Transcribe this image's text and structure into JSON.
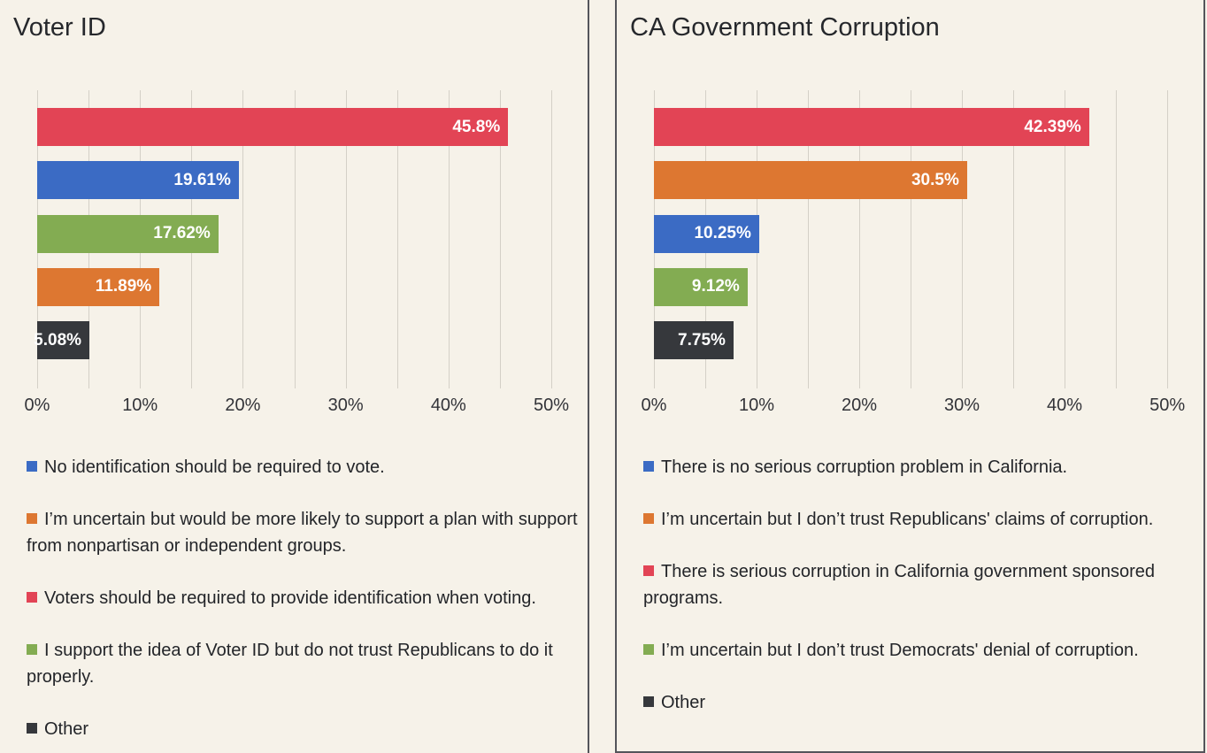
{
  "page_background": "#f6f2e9",
  "panel_border_color": "#54555b",
  "palette": {
    "blue": "#3b6bc4",
    "orange": "#dd7731",
    "red": "#e24455",
    "green": "#83ac52",
    "dark": "#36383c"
  },
  "axis": {
    "tick_labels": [
      "0%",
      "10%",
      "20%",
      "30%",
      "40%",
      "50%"
    ],
    "tick_values": [
      0,
      10,
      20,
      30,
      40,
      50
    ],
    "gridline_values": [
      0,
      5,
      10,
      15,
      20,
      25,
      30,
      35,
      40,
      45,
      50
    ],
    "axis_max": 52.75
  },
  "chart_data": [
    {
      "type": "bar",
      "orientation": "horizontal",
      "title": "Voter ID",
      "xlim": [
        0,
        52.75
      ],
      "grid": true,
      "legend_position": "bottom",
      "bars": [
        {
          "answer": "Voters should be required to provide identification when voting.",
          "color": "red",
          "value": 45.8,
          "value_label": "45.8%"
        },
        {
          "answer": "No identification should be required to vote.",
          "color": "blue",
          "value": 19.61,
          "value_label": "19.61%"
        },
        {
          "answer": "I support the idea of Voter ID but do not trust Republicans to do it properly.",
          "color": "green",
          "value": 17.62,
          "value_label": "17.62%"
        },
        {
          "answer": "I’m uncertain but would be more likely to support a plan with support from nonpartisan or independent groups.",
          "color": "orange",
          "value": 11.89,
          "value_label": "11.89%"
        },
        {
          "answer": "Other",
          "color": "dark",
          "value": 5.08,
          "value_label": "5.08%"
        }
      ],
      "legend": [
        {
          "color": "blue",
          "text": "No identification should be required to vote."
        },
        {
          "color": "orange",
          "text": "I’m uncertain but would be more likely to support a plan with support from nonpartisan or independent groups."
        },
        {
          "color": "red",
          "text": "Voters should be required to provide identification when voting."
        },
        {
          "color": "green",
          "text": "I support the idea of Voter ID but do not trust Republicans to do it properly."
        },
        {
          "color": "dark",
          "text": "Other"
        }
      ]
    },
    {
      "type": "bar",
      "orientation": "horizontal",
      "title": "CA Government Corruption",
      "xlim": [
        0,
        52.75
      ],
      "grid": true,
      "legend_position": "bottom",
      "bars": [
        {
          "answer": "There is serious corruption in California government sponsored programs.",
          "color": "red",
          "value": 42.39,
          "value_label": "42.39%"
        },
        {
          "answer": "I’m uncertain but I don’t trust Republicans' claims of corruption.",
          "color": "orange",
          "value": 30.5,
          "value_label": "30.5%"
        },
        {
          "answer": "There is no serious corruption problem in California.",
          "color": "blue",
          "value": 10.25,
          "value_label": "10.25%"
        },
        {
          "answer": "I’m uncertain but I don’t trust Democrats' denial of corruption.",
          "color": "green",
          "value": 9.12,
          "value_label": "9.12%"
        },
        {
          "answer": "Other",
          "color": "dark",
          "value": 7.75,
          "value_label": "7.75%"
        }
      ],
      "legend": [
        {
          "color": "blue",
          "text": "There is no serious corruption problem in California."
        },
        {
          "color": "orange",
          "text": "I’m uncertain but I don’t trust Republicans' claims of corruption."
        },
        {
          "color": "red",
          "text": "There is serious corruption in California government sponsored programs."
        },
        {
          "color": "green",
          "text": "I’m uncertain but I don’t trust Democrats' denial of corruption."
        },
        {
          "color": "dark",
          "text": "Other"
        }
      ]
    }
  ]
}
